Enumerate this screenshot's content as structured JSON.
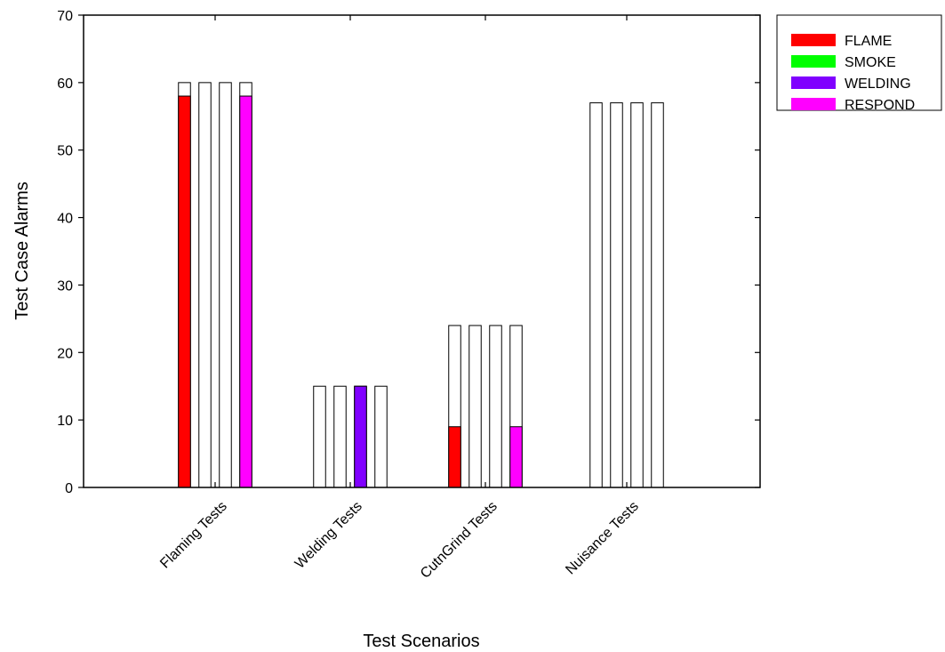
{
  "chart_data": {
    "type": "bar",
    "xlabel": "Test Scenarios",
    "ylabel": "Test Case Alarms",
    "ylim": [
      0,
      70
    ],
    "yticks": [
      0,
      10,
      20,
      30,
      40,
      50,
      60,
      70
    ],
    "categories": [
      "Flaming Tests",
      "Welding Tests",
      "CutnGrind Tests",
      "Nuisance Tests"
    ],
    "totals": [
      60,
      15,
      24,
      57
    ],
    "series": [
      {
        "name": "FLAME",
        "color": "#ff0000",
        "values": [
          58,
          0,
          9,
          0
        ]
      },
      {
        "name": "SMOKE",
        "color": "#00ff00",
        "values": [
          0,
          0,
          0,
          0
        ]
      },
      {
        "name": "WELDING",
        "color": "#8000ff",
        "values": [
          0,
          15,
          0,
          0
        ]
      },
      {
        "name": "RESPOND",
        "color": "#ff00ff",
        "values": [
          58,
          0,
          9,
          0
        ]
      }
    ],
    "legend_position": "top-right, outside plot",
    "grid": false
  }
}
